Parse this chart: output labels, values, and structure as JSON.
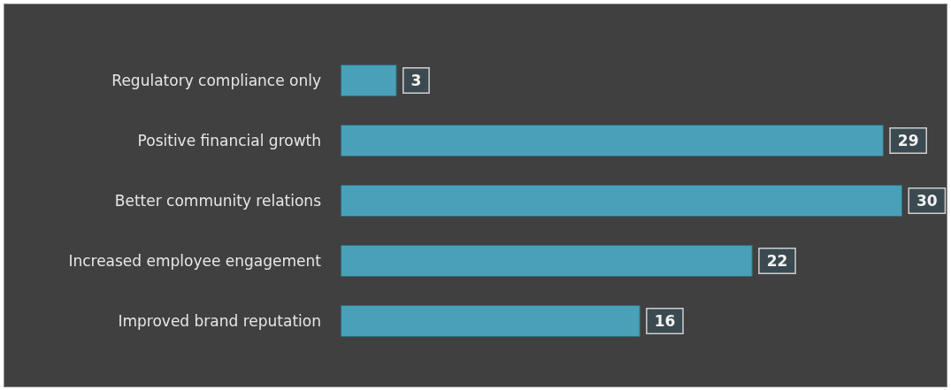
{
  "chart_data": {
    "type": "bar",
    "orientation": "horizontal",
    "categories": [
      "Regulatory compliance only",
      "Positive financial growth",
      "Better community relations",
      "Increased employee engagement",
      "Improved brand reputation"
    ],
    "values": [
      3,
      29,
      30,
      22,
      16
    ],
    "color": "#4aa0b8",
    "data_labels": true
  }
}
